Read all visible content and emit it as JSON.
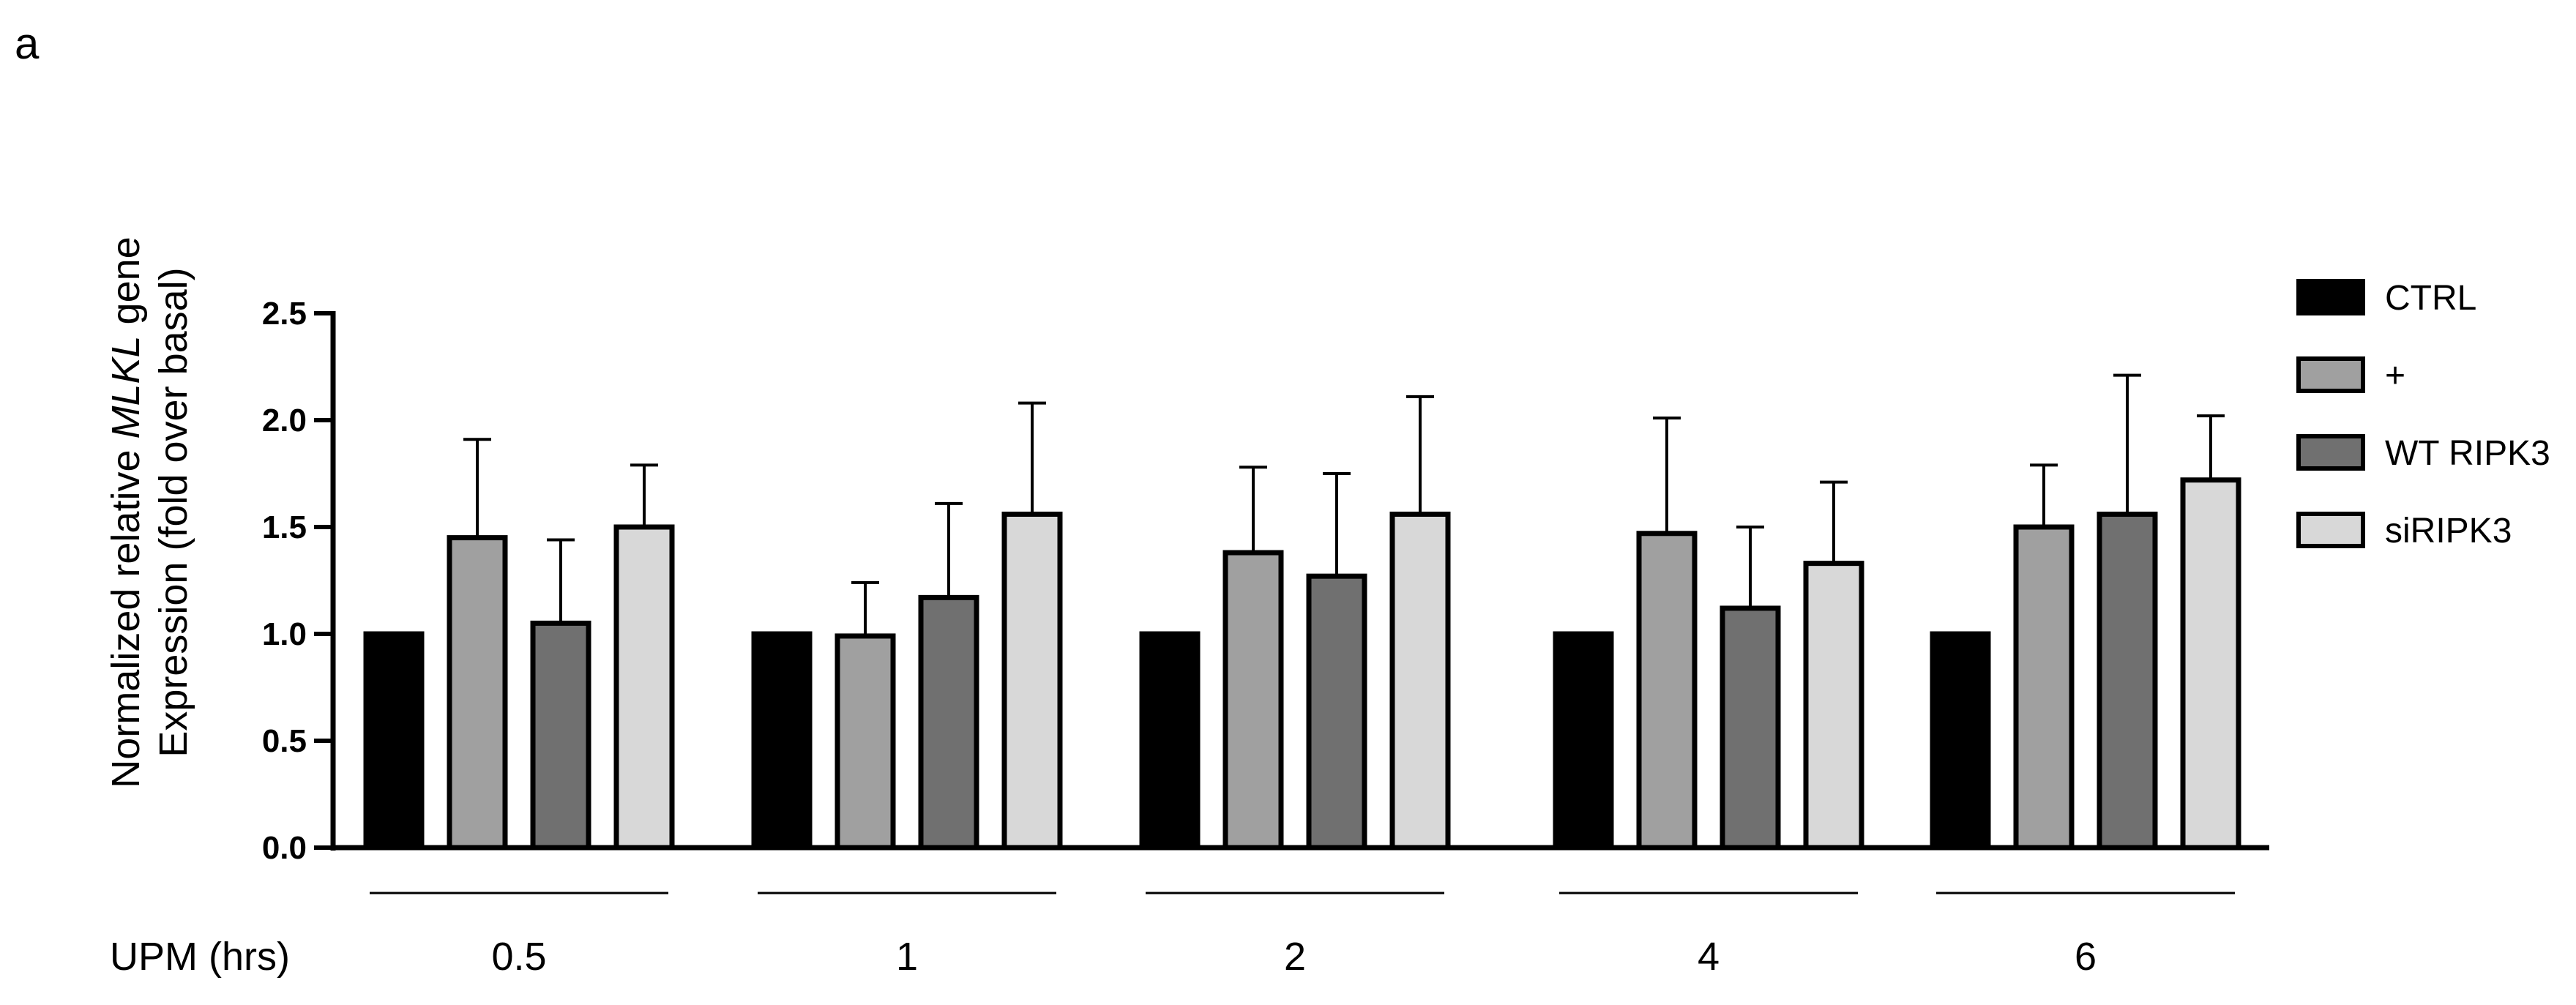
{
  "panel_label": "a",
  "chart_data": {
    "type": "bar",
    "ylabel_pre": "Normalized relative ",
    "ylabel_italic": "MLKL",
    "ylabel_post": " gene",
    "ylabel_line2": "Expression (fold over basal)",
    "xlabel": "UPM (hrs)",
    "categories": [
      "0.5",
      "1",
      "2",
      "4",
      "6"
    ],
    "ylim": [
      0,
      2.5
    ],
    "yticks": [
      "0.0",
      "0.5",
      "1.0",
      "1.5",
      "2.0",
      "2.5"
    ],
    "legend_position": "right",
    "series": [
      {
        "name": "CTRL",
        "color": "#000000",
        "values": [
          1.0,
          1.0,
          1.0,
          1.0,
          1.0
        ],
        "errors": [
          0,
          0,
          0,
          0,
          0
        ]
      },
      {
        "name": "+",
        "color": "#a0a0a0",
        "values": [
          1.45,
          0.99,
          1.38,
          1.47,
          1.5
        ],
        "errors": [
          0.46,
          0.25,
          0.4,
          0.54,
          0.29
        ]
      },
      {
        "name": "WT RIPK3",
        "color": "#707070",
        "values": [
          1.05,
          1.17,
          1.27,
          1.12,
          1.56
        ],
        "errors": [
          0.39,
          0.44,
          0.48,
          0.38,
          0.65
        ]
      },
      {
        "name": "siRIPK3",
        "color": "#d8d8d8",
        "values": [
          1.5,
          1.56,
          1.56,
          1.33,
          1.72
        ],
        "errors": [
          0.29,
          0.52,
          0.55,
          0.38,
          0.3
        ]
      }
    ]
  }
}
